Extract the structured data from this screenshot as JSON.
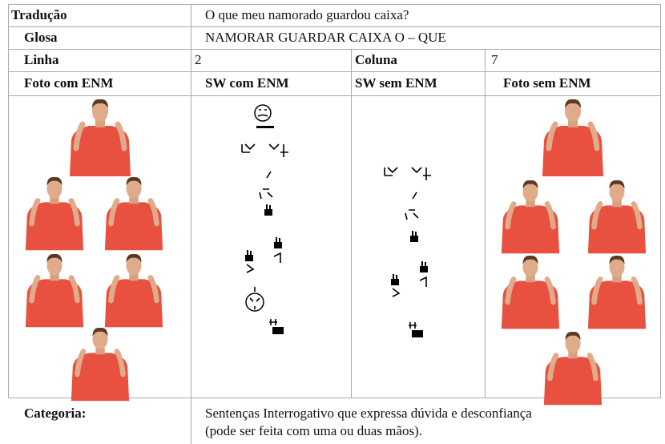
{
  "translation": {
    "label": "Tradução",
    "value": "O que meu namorado guardou caixa?"
  },
  "gloss": {
    "label": "Glosa",
    "value": "NAMORAR GUARDAR CAIXA O – QUE"
  },
  "position": {
    "line_label": "Linha",
    "line": 2,
    "column_label": "Coluna",
    "column": 7
  },
  "headers": [
    "Foto com ENM",
    "SW com ENM",
    "SW sem ENM",
    "Foto sem ENM"
  ],
  "category": {
    "label": "Categoria:",
    "lines": [
      "Sentenças Interrogativo que expressa dúvida e desconfiança",
      "(pode ser feita com uma ou duas mãos)."
    ]
  }
}
